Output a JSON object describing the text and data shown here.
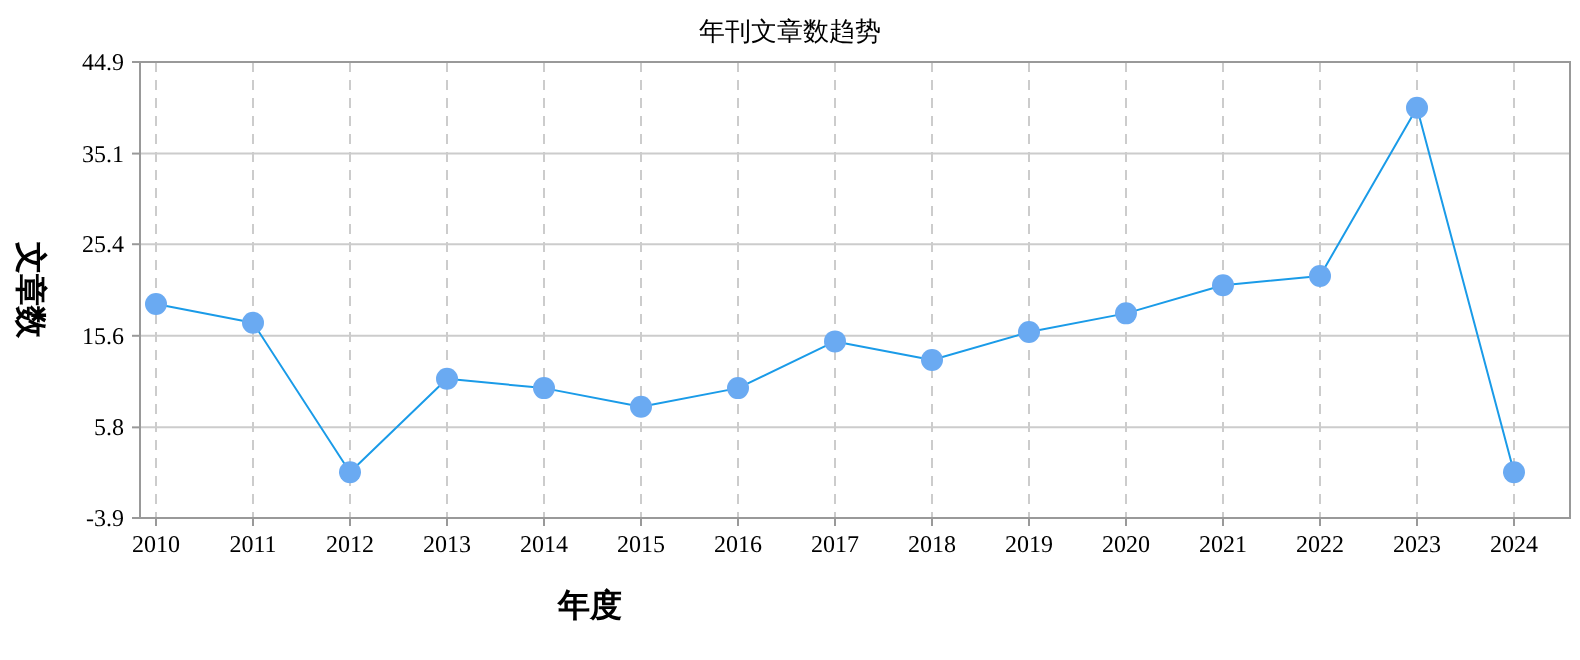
{
  "chart_data": {
    "type": "line",
    "title": "年刊文章数趋势",
    "xlabel": "年度",
    "ylabel": "文章数",
    "categories": [
      "2010",
      "2011",
      "2012",
      "2013",
      "2014",
      "2015",
      "2016",
      "2017",
      "2018",
      "2019",
      "2020",
      "2021",
      "2022",
      "2023",
      "2024"
    ],
    "series": [
      {
        "color": "#1a9be8",
        "values": [
          19,
          17,
          1,
          11,
          10,
          8,
          10,
          15,
          13,
          16,
          18,
          21,
          22,
          40,
          1
        ]
      }
    ],
    "ylim": [
      -3.9,
      44.9
    ],
    "yticks": [
      -3.9,
      5.8,
      15.6,
      25.4,
      35.1,
      44.9
    ],
    "grid": true,
    "marker": "circle",
    "line_style": "solid"
  }
}
